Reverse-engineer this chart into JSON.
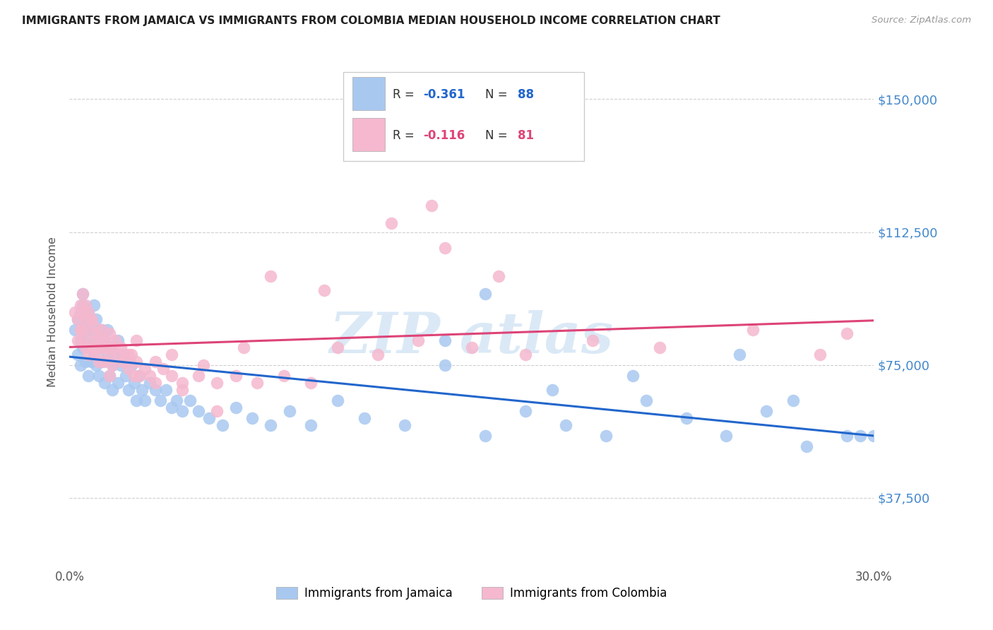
{
  "title": "IMMIGRANTS FROM JAMAICA VS IMMIGRANTS FROM COLOMBIA MEDIAN HOUSEHOLD INCOME CORRELATION CHART",
  "source": "Source: ZipAtlas.com",
  "ylabel": "Median Household Income",
  "xmin": 0.0,
  "xmax": 0.3,
  "ymin": 18000,
  "ymax": 162000,
  "yticks": [
    37500,
    75000,
    112500,
    150000
  ],
  "xticks": [
    0.0,
    0.05,
    0.1,
    0.15,
    0.2,
    0.25,
    0.3
  ],
  "jamaica_color": "#a8c8f0",
  "colombia_color": "#f5b8ce",
  "jamaica_line_color": "#2266cc",
  "colombia_line_color": "#dd4477",
  "jamaica_R": -0.361,
  "jamaica_N": 88,
  "colombia_R": -0.116,
  "colombia_N": 81,
  "watermark": "ZIP atlas",
  "background_color": "#ffffff",
  "grid_color": "#d0d0d0",
  "title_color": "#222222",
  "axis_label_color": "#555555",
  "right_tick_color": "#4488cc",
  "jamaica_x": [
    0.002,
    0.003,
    0.003,
    0.004,
    0.004,
    0.004,
    0.005,
    0.005,
    0.005,
    0.005,
    0.006,
    0.006,
    0.006,
    0.007,
    0.007,
    0.007,
    0.008,
    0.008,
    0.008,
    0.009,
    0.009,
    0.009,
    0.01,
    0.01,
    0.01,
    0.011,
    0.011,
    0.012,
    0.012,
    0.013,
    0.013,
    0.014,
    0.014,
    0.015,
    0.015,
    0.016,
    0.016,
    0.017,
    0.018,
    0.018,
    0.019,
    0.02,
    0.021,
    0.022,
    0.023,
    0.024,
    0.025,
    0.026,
    0.027,
    0.028,
    0.03,
    0.032,
    0.034,
    0.036,
    0.038,
    0.04,
    0.042,
    0.045,
    0.048,
    0.052,
    0.057,
    0.062,
    0.068,
    0.075,
    0.082,
    0.09,
    0.1,
    0.11,
    0.125,
    0.14,
    0.155,
    0.17,
    0.185,
    0.2,
    0.215,
    0.23,
    0.245,
    0.26,
    0.275,
    0.295,
    0.14,
    0.18,
    0.21,
    0.25,
    0.27,
    0.29,
    0.3,
    0.155
  ],
  "jamaica_y": [
    85000,
    88000,
    78000,
    90000,
    82000,
    75000,
    92000,
    86000,
    80000,
    95000,
    88000,
    76000,
    82000,
    90000,
    72000,
    85000,
    88000,
    76000,
    80000,
    85000,
    78000,
    92000,
    82000,
    75000,
    88000,
    80000,
    72000,
    85000,
    76000,
    82000,
    70000,
    78000,
    85000,
    80000,
    72000,
    75000,
    68000,
    78000,
    82000,
    70000,
    75000,
    78000,
    72000,
    68000,
    75000,
    70000,
    65000,
    72000,
    68000,
    65000,
    70000,
    68000,
    65000,
    68000,
    63000,
    65000,
    62000,
    65000,
    62000,
    60000,
    58000,
    63000,
    60000,
    58000,
    62000,
    58000,
    65000,
    60000,
    58000,
    75000,
    55000,
    62000,
    58000,
    55000,
    65000,
    60000,
    55000,
    62000,
    52000,
    55000,
    82000,
    68000,
    72000,
    78000,
    65000,
    55000,
    55000,
    95000
  ],
  "colombia_x": [
    0.002,
    0.003,
    0.003,
    0.004,
    0.004,
    0.005,
    0.005,
    0.005,
    0.006,
    0.006,
    0.006,
    0.007,
    0.007,
    0.008,
    0.008,
    0.009,
    0.009,
    0.01,
    0.01,
    0.011,
    0.011,
    0.012,
    0.012,
    0.013,
    0.013,
    0.014,
    0.015,
    0.015,
    0.016,
    0.016,
    0.017,
    0.018,
    0.019,
    0.02,
    0.021,
    0.022,
    0.023,
    0.024,
    0.025,
    0.026,
    0.028,
    0.03,
    0.032,
    0.035,
    0.038,
    0.042,
    0.048,
    0.055,
    0.062,
    0.07,
    0.08,
    0.09,
    0.1,
    0.115,
    0.13,
    0.15,
    0.17,
    0.195,
    0.22,
    0.255,
    0.28,
    0.12,
    0.14,
    0.16,
    0.135,
    0.095,
    0.075,
    0.055,
    0.042,
    0.032,
    0.022,
    0.015,
    0.01,
    0.008,
    0.006,
    0.004,
    0.025,
    0.038,
    0.05,
    0.065,
    0.29
  ],
  "colombia_y": [
    90000,
    88000,
    82000,
    92000,
    85000,
    90000,
    82000,
    95000,
    88000,
    80000,
    85000,
    90000,
    78000,
    88000,
    82000,
    86000,
    80000,
    84000,
    78000,
    82000,
    76000,
    85000,
    80000,
    82000,
    76000,
    80000,
    84000,
    78000,
    80000,
    75000,
    82000,
    78000,
    80000,
    76000,
    78000,
    74000,
    78000,
    72000,
    76000,
    72000,
    74000,
    72000,
    70000,
    74000,
    72000,
    68000,
    72000,
    70000,
    72000,
    70000,
    72000,
    70000,
    80000,
    78000,
    82000,
    80000,
    78000,
    82000,
    80000,
    85000,
    78000,
    115000,
    108000,
    100000,
    120000,
    96000,
    100000,
    62000,
    70000,
    76000,
    78000,
    72000,
    80000,
    88000,
    92000,
    85000,
    82000,
    78000,
    75000,
    80000,
    84000
  ]
}
